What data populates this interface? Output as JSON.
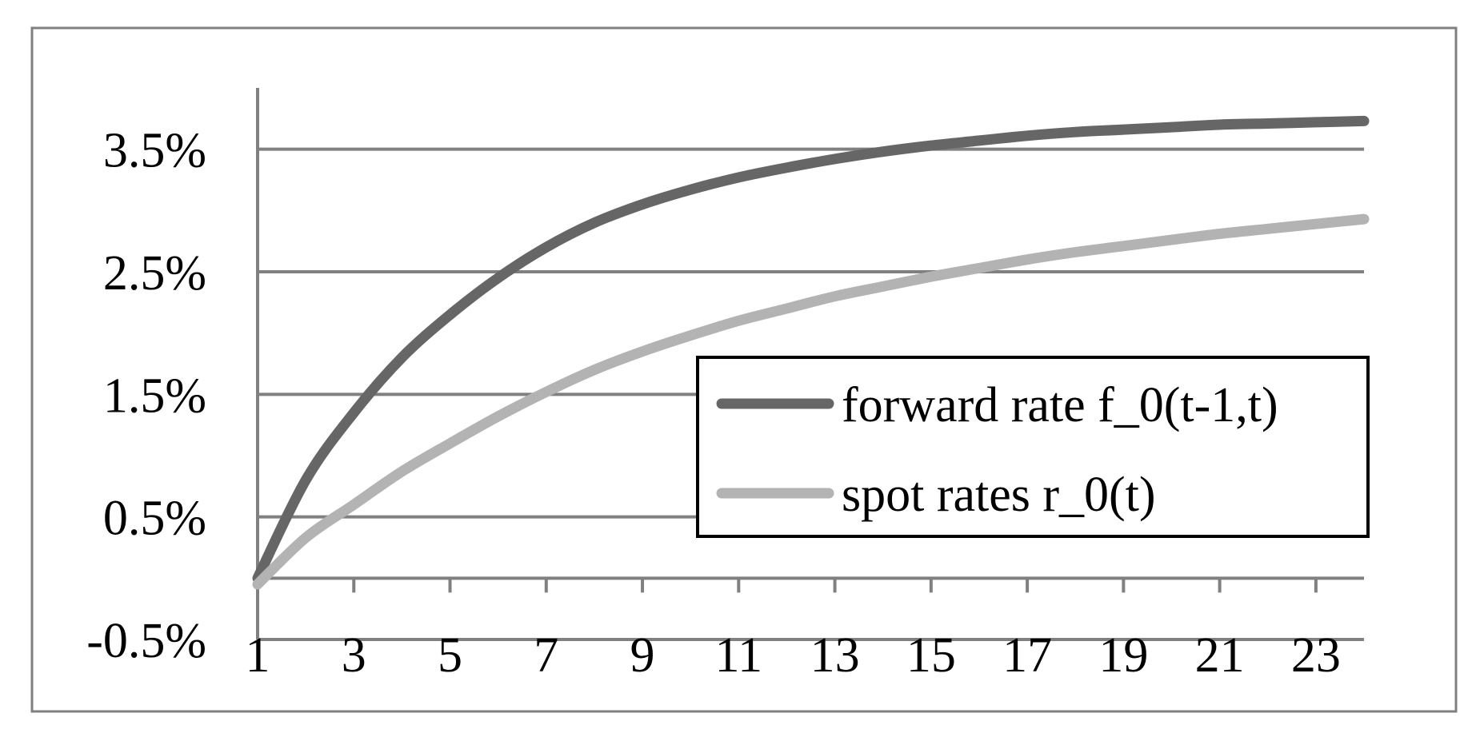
{
  "chart_data": {
    "type": "line",
    "title": "",
    "xlabel": "",
    "ylabel": "",
    "x_ticks": [
      "1",
      "3",
      "5",
      "7",
      "9",
      "11",
      "13",
      "15",
      "17",
      "19",
      "21",
      "23"
    ],
    "y_ticks": [
      "-0.5%",
      "0.5%",
      "1.5%",
      "2.5%",
      "3.5%"
    ],
    "xlim": [
      1,
      24
    ],
    "ylim": [
      -0.5,
      4.0
    ],
    "grid": true,
    "legend_position": "center-right",
    "x": [
      1,
      2,
      3,
      4,
      5,
      6,
      7,
      8,
      9,
      10,
      11,
      12,
      13,
      14,
      15,
      16,
      17,
      18,
      19,
      20,
      21,
      22,
      23,
      24
    ],
    "series": [
      {
        "name": "forward rate f_0(t-1,t)",
        "color": "#666666",
        "values": [
          0.0,
          0.8,
          1.35,
          1.8,
          2.15,
          2.45,
          2.7,
          2.9,
          3.05,
          3.17,
          3.27,
          3.35,
          3.42,
          3.48,
          3.53,
          3.57,
          3.61,
          3.64,
          3.66,
          3.68,
          3.7,
          3.71,
          3.72,
          3.73
        ]
      },
      {
        "name": "spot rates r_0(t)",
        "color": "#b3b3b3",
        "values": [
          -0.05,
          0.33,
          0.6,
          0.87,
          1.1,
          1.32,
          1.52,
          1.7,
          1.85,
          1.98,
          2.1,
          2.2,
          2.3,
          2.38,
          2.46,
          2.53,
          2.6,
          2.66,
          2.71,
          2.76,
          2.81,
          2.85,
          2.89,
          2.93
        ]
      }
    ]
  }
}
